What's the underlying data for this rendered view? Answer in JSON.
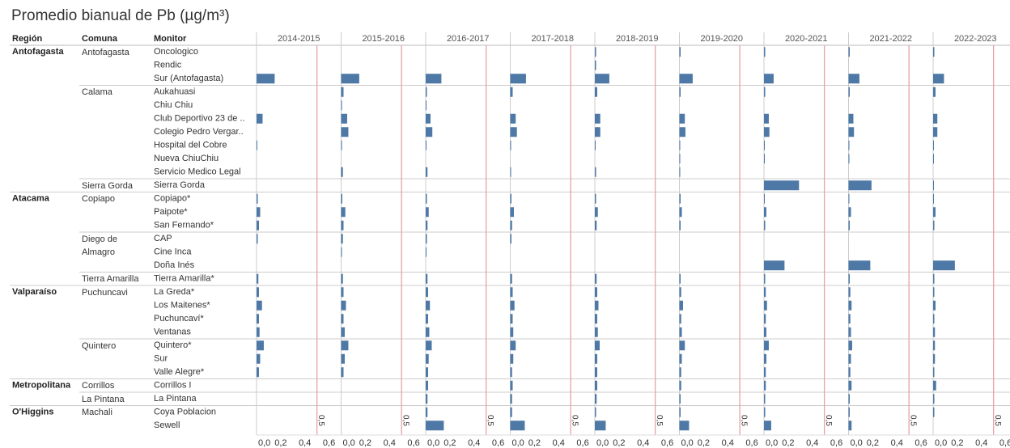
{
  "chart_data": {
    "type": "bar",
    "title": "Promedio bianual de Pb (µg/m³)",
    "column_headers": [
      "Región",
      "Comuna",
      "Monitor"
    ],
    "color": "#4e79a7",
    "xlim": [
      0,
      0.7
    ],
    "xticks": [
      {
        "value": 0,
        "label": "0,0"
      },
      {
        "value": 0.2,
        "label": "0,2"
      },
      {
        "value": 0.4,
        "label": "0,4"
      },
      {
        "value": 0.6,
        "label": "0,6"
      }
    ],
    "reference_line": {
      "value": 0.5,
      "label": "0,5",
      "color": "#e8a3a3"
    },
    "regions": [
      {
        "name": "Antofagasta",
        "comunas": [
          {
            "name": "Antofagasta",
            "monitors": [
              "Oncologico",
              "Rendic",
              "Sur (Antofagasta)"
            ]
          },
          {
            "name": "Calama",
            "monitors": [
              "Aukahuasi",
              "Chiu Chiu",
              "Club Deportivo 23 de ..",
              "Colegio Pedro Vergar..",
              "Hospital del Cobre",
              "Nueva ChiuChiu",
              "Servicio Medico Legal"
            ]
          },
          {
            "name": "Sierra Gorda",
            "monitors": [
              "Sierra Gorda"
            ]
          }
        ]
      },
      {
        "name": "Atacama",
        "comunas": [
          {
            "name": "Copiapo",
            "monitors": [
              "Copiapo*",
              "Paipote*",
              "San Fernando*"
            ]
          },
          {
            "name": "Diego de Almagro",
            "monitors": [
              "CAP",
              "Cine Inca",
              "Doña Inés"
            ]
          },
          {
            "name": "Tierra Amarilla",
            "monitors": [
              "Tierra Amarilla*"
            ]
          }
        ]
      },
      {
        "name": "Valparaíso",
        "comunas": [
          {
            "name": "Puchuncavi",
            "monitors": [
              "La Greda*",
              "Los Maitenes*",
              "Puchuncaví*",
              "Ventanas"
            ]
          },
          {
            "name": "Quintero",
            "monitors": [
              "Quintero*",
              "Sur",
              "Valle Alegre*"
            ]
          }
        ]
      },
      {
        "name": "Metropolitana",
        "comunas": [
          {
            "name": "Corrillos",
            "monitors": [
              "Corrillos I"
            ]
          },
          {
            "name": "La Pintana",
            "monitors": [
              "La Pintana"
            ]
          }
        ]
      },
      {
        "name": "O'Higgins",
        "comunas": [
          {
            "name": "Machali",
            "monitors": [
              "Coya Poblacion",
              "Sewell"
            ]
          }
        ]
      }
    ],
    "series": [
      {
        "name": "2014-2015",
        "values": [
          null,
          null,
          0.15,
          null,
          null,
          0.05,
          null,
          0.005,
          null,
          null,
          null,
          0.01,
          0.03,
          0.02,
          0.01,
          null,
          null,
          0.015,
          0.02,
          0.045,
          0.02,
          0.025,
          0.06,
          0.03,
          0.02,
          null,
          null,
          null,
          null
        ]
      },
      {
        "name": "2015-2016",
        "values": [
          null,
          null,
          0.15,
          0.02,
          0.005,
          0.05,
          0.06,
          0.005,
          null,
          0.015,
          null,
          0.01,
          0.035,
          0.02,
          0.015,
          0.005,
          null,
          0.015,
          0.02,
          0.04,
          0.02,
          0.03,
          0.06,
          0.03,
          0.02,
          null,
          null,
          null,
          null
        ]
      },
      {
        "name": "2016-2017",
        "values": [
          null,
          null,
          0.13,
          0.01,
          0.005,
          0.04,
          0.055,
          0.005,
          null,
          0.015,
          null,
          0.01,
          0.025,
          0.015,
          0.01,
          0.005,
          null,
          0.015,
          0.02,
          0.035,
          0.02,
          0.03,
          0.05,
          0.025,
          0.02,
          0.02,
          0.015,
          0.015,
          0.15
        ]
      },
      {
        "name": "2017-2018",
        "values": [
          null,
          null,
          0.13,
          0.02,
          null,
          0.045,
          0.055,
          0.005,
          null,
          0.005,
          null,
          0.01,
          0.03,
          0.015,
          0.01,
          null,
          null,
          0.015,
          0.02,
          0.035,
          0.02,
          0.025,
          0.045,
          0.025,
          0.015,
          0.02,
          0.015,
          0.015,
          0.12
        ]
      },
      {
        "name": "2018-2019",
        "values": [
          0.01,
          0.01,
          0.12,
          0.02,
          null,
          0.045,
          0.045,
          0.005,
          null,
          0.01,
          null,
          0.01,
          0.025,
          0.015,
          null,
          null,
          null,
          0.015,
          0.02,
          0.03,
          0.02,
          0.025,
          0.04,
          0.02,
          0.02,
          0.02,
          0.015,
          0.01,
          0.09
        ]
      },
      {
        "name": "2019-2020",
        "values": [
          0.01,
          null,
          0.11,
          0.01,
          null,
          0.045,
          0.05,
          0.005,
          0.005,
          0.005,
          null,
          0.01,
          0.02,
          0.01,
          null,
          null,
          null,
          0.01,
          0.015,
          0.03,
          0.015,
          0.02,
          0.045,
          0.02,
          0.015,
          0.015,
          0.01,
          0.01,
          0.08
        ]
      },
      {
        "name": "2020-2021",
        "values": [
          0.01,
          null,
          0.08,
          0.01,
          null,
          0.04,
          0.045,
          0.005,
          0.005,
          null,
          0.29,
          0.005,
          0.02,
          0.01,
          null,
          null,
          0.17,
          0.01,
          0.015,
          0.025,
          0.015,
          0.02,
          0.04,
          0.02,
          0.015,
          0.015,
          0.01,
          0.01,
          0.06
        ]
      },
      {
        "name": "2021-2022",
        "values": [
          0.01,
          null,
          0.09,
          0.01,
          null,
          0.04,
          0.045,
          0.005,
          0.005,
          null,
          0.19,
          0.005,
          0.02,
          0.01,
          null,
          null,
          0.18,
          0.01,
          0.015,
          0.025,
          0.015,
          0.02,
          0.03,
          0.02,
          0.015,
          0.025,
          0.01,
          0.01,
          0.025
        ]
      },
      {
        "name": "2022-2023",
        "values": [
          0.01,
          null,
          0.09,
          0.02,
          null,
          0.035,
          0.035,
          0.005,
          0.005,
          null,
          0.005,
          0.005,
          0.02,
          0.01,
          null,
          null,
          0.18,
          0.01,
          0.01,
          0.02,
          0.01,
          0.015,
          0.015,
          0.015,
          0.01,
          0.025,
          0.01,
          0.01,
          null
        ]
      }
    ]
  }
}
